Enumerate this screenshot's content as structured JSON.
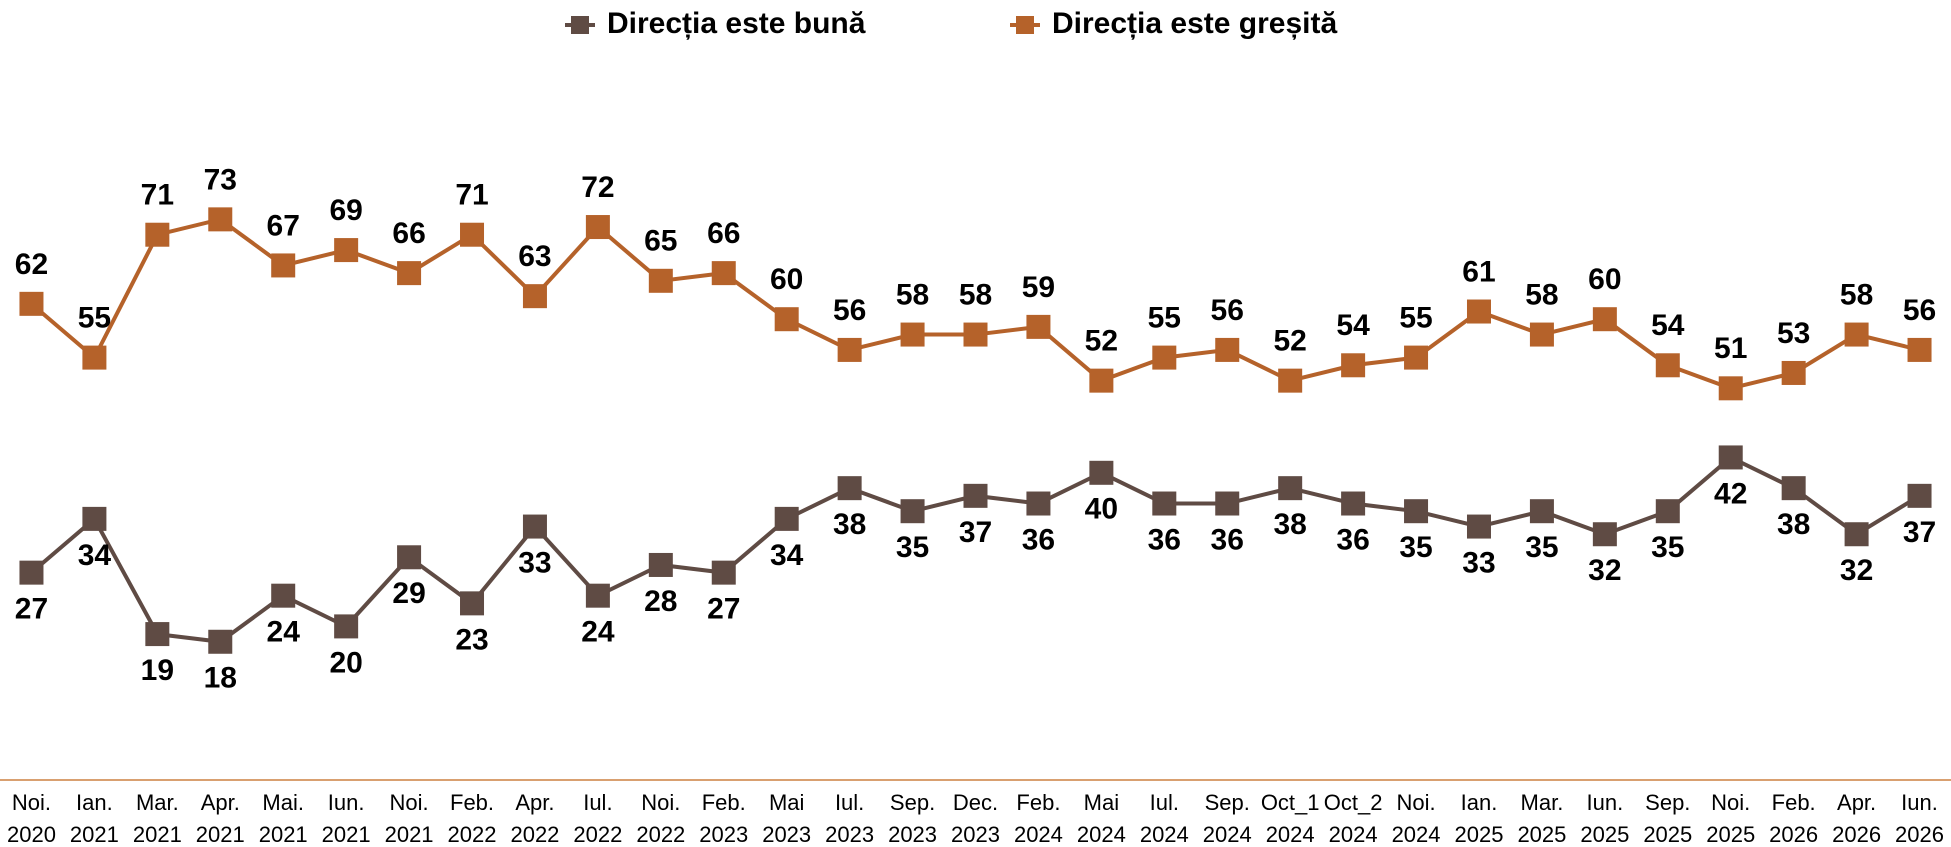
{
  "chart_data": {
    "type": "line",
    "categories": [
      "Noi. 2020",
      "Ian. 2021",
      "Mar. 2021",
      "Apr. 2021",
      "Mai. 2021",
      "Iun. 2021",
      "Noi. 2021",
      "Feb. 2022",
      "Apr. 2022",
      "Iul. 2022",
      "Noi. 2022",
      "Feb. 2023",
      "Mai 2023",
      "Iul. 2023",
      "Sep. 2023",
      "Dec. 2023",
      "Feb. 2024",
      "Mai 2024",
      "Iul. 2024",
      "Sep. 2024",
      "Oct_1 2024",
      "Oct_2 2024",
      "Noi. 2024",
      "Ian. 2025",
      "Mar. 2025",
      "Iun. 2025",
      "Sep. 2025",
      "Noi. 2025",
      "Feb. 2026",
      "Apr. 2026",
      "Iun. 2026"
    ],
    "series": [
      {
        "name": "Direcția este bună",
        "color": "#5f4b44",
        "values": [
          27,
          34,
          19,
          18,
          24,
          20,
          29,
          23,
          33,
          24,
          28,
          27,
          34,
          38,
          35,
          37,
          36,
          40,
          36,
          36,
          38,
          36,
          35,
          33,
          35,
          32,
          35,
          42,
          38,
          32,
          37
        ]
      },
      {
        "name": "Direcția este greșită",
        "color": "#b5622a",
        "values": [
          62,
          55,
          71,
          73,
          67,
          69,
          66,
          71,
          63,
          72,
          65,
          66,
          60,
          56,
          58,
          58,
          59,
          52,
          55,
          56,
          52,
          54,
          55,
          61,
          58,
          60,
          54,
          51,
          53,
          58,
          56
        ]
      }
    ],
    "ylim": [
      0,
      100
    ],
    "legend": "top"
  }
}
